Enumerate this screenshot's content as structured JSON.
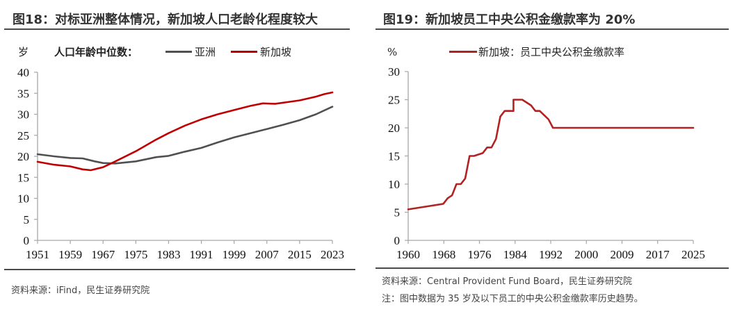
{
  "left": {
    "title": "图18：对标亚洲整体情况，新加坡人口老龄化程度较大",
    "unit": "岁",
    "legend_title": "人口年龄中位数：",
    "source": "资料来源：iFind，民生证券研究院"
  },
  "right": {
    "title": "图19：新加坡员工中央公积金缴款率为 20%",
    "unit": "%",
    "source": "资料来源：Central Provident Fund Board，民生证券研究院",
    "note": "注：图中数据为 35 岁及以下员工的中央公积金缴款率历史趋势。"
  },
  "chart_data": [
    {
      "type": "line",
      "title": "图18：对标亚洲整体情况，新加坡人口老龄化程度较大",
      "ylabel": "岁",
      "xlabel": "",
      "xlim": [
        1951,
        2023
      ],
      "ylim": [
        0,
        40
      ],
      "yticks": [
        0,
        5,
        10,
        15,
        20,
        25,
        30,
        35,
        40
      ],
      "xticks": [
        "1951",
        "1959",
        "1967",
        "1975",
        "1983",
        "1991",
        "1999",
        "2007",
        "2015",
        "2023"
      ],
      "grid": false,
      "legend_title": "人口年龄中位数：",
      "legend_position": "top",
      "series": [
        {
          "name": "亚洲",
          "color": "#505050",
          "x": [
            1951,
            1955,
            1959,
            1962,
            1965,
            1967,
            1970,
            1975,
            1980,
            1983,
            1987,
            1991,
            1995,
            1999,
            2003,
            2007,
            2011,
            2015,
            2019,
            2023
          ],
          "values": [
            20.5,
            20.0,
            19.6,
            19.5,
            18.8,
            18.4,
            18.3,
            18.8,
            19.8,
            20.1,
            21.1,
            22.0,
            23.3,
            24.5,
            25.5,
            26.5,
            27.5,
            28.6,
            30.0,
            31.8
          ]
        },
        {
          "name": "新加坡",
          "color": "#C00000",
          "x": [
            1951,
            1955,
            1959,
            1962,
            1964,
            1967,
            1970,
            1975,
            1980,
            1983,
            1987,
            1991,
            1995,
            1999,
            2003,
            2006,
            2009,
            2012,
            2015,
            2019,
            2021,
            2023
          ],
          "values": [
            18.7,
            18.0,
            17.6,
            16.9,
            16.7,
            17.4,
            18.8,
            21.2,
            24.0,
            25.5,
            27.3,
            28.8,
            30.0,
            31.0,
            32.0,
            32.6,
            32.5,
            32.9,
            33.3,
            34.2,
            34.8,
            35.2
          ]
        }
      ]
    },
    {
      "type": "line",
      "title": "图19：新加坡员工中央公积金缴款率为 20%",
      "ylabel": "%",
      "xlabel": "",
      "xlim": [
        1960,
        2025
      ],
      "ylim": [
        0,
        30
      ],
      "yticks": [
        0,
        5,
        10,
        15,
        20,
        25,
        30
      ],
      "xticks": [
        "1960",
        "1968",
        "1976",
        "1984",
        "1992",
        "2000",
        "2009",
        "2017",
        "2025"
      ],
      "grid": false,
      "legend_position": "top",
      "series": [
        {
          "name": "新加坡：员工中央公积金缴款率",
          "color": "#B22222",
          "x": [
            1960,
            1968,
            1969,
            1970,
            1971,
            1972,
            1973,
            1974,
            1975,
            1977,
            1978,
            1979,
            1980,
            1981,
            1982,
            1984,
            1984,
            1986,
            1988,
            1989,
            1990,
            1992,
            1993,
            2025
          ],
          "values": [
            5.5,
            6.5,
            7.5,
            8.0,
            10,
            10,
            11,
            15,
            15,
            15.5,
            16.5,
            16.5,
            18,
            22,
            23,
            23,
            25,
            25,
            24,
            23,
            23,
            21.5,
            20,
            20
          ]
        }
      ]
    }
  ]
}
